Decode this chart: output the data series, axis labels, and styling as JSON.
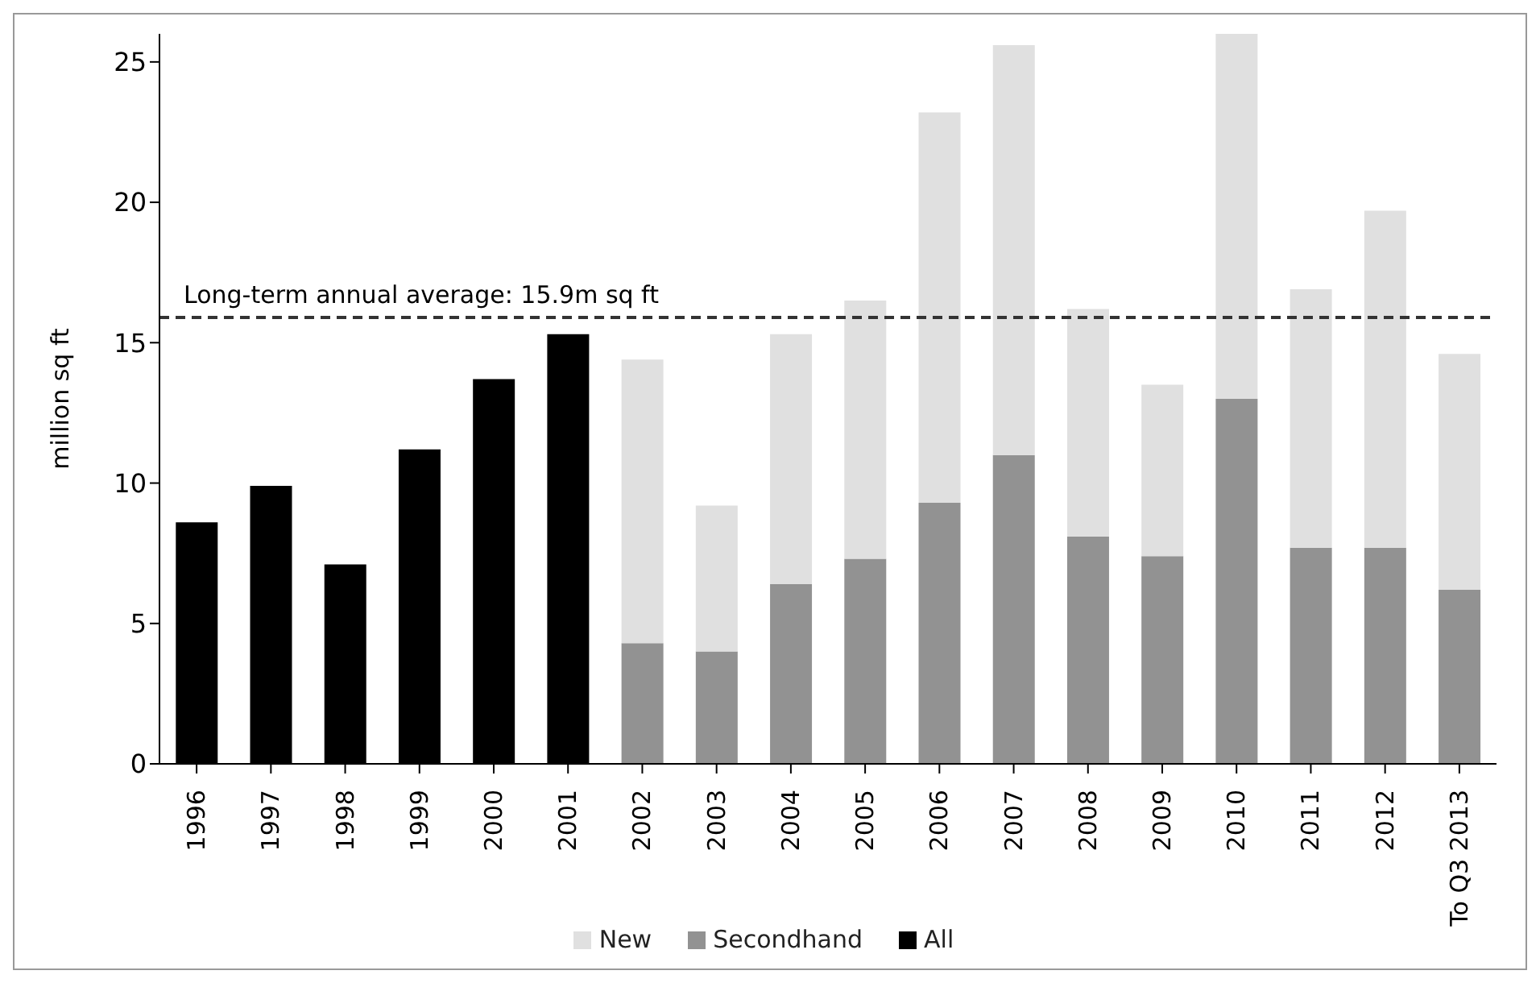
{
  "chart_data": {
    "type": "bar",
    "stacked": true,
    "ylabel": "million sq ft",
    "categories": [
      "1996",
      "1997",
      "1998",
      "1999",
      "2000",
      "2001",
      "2002",
      "2003",
      "2004",
      "2005",
      "2006",
      "2007",
      "2008",
      "2009",
      "2010",
      "2011",
      "2012",
      "To Q3 2013"
    ],
    "series": [
      {
        "name": "All",
        "color": "#000000",
        "values": [
          8.6,
          9.9,
          7.1,
          11.2,
          13.7,
          15.3,
          null,
          null,
          null,
          null,
          null,
          null,
          null,
          null,
          null,
          null,
          null,
          null
        ]
      },
      {
        "name": "Secondhand",
        "color": "#929292",
        "values": [
          null,
          null,
          null,
          null,
          null,
          null,
          4.3,
          4.0,
          6.4,
          7.3,
          9.3,
          11.0,
          8.1,
          7.4,
          13.0,
          7.7,
          7.7,
          6.2
        ]
      },
      {
        "name": "New",
        "color": "#e0e0e0",
        "values": [
          null,
          null,
          null,
          null,
          null,
          null,
          10.1,
          5.2,
          8.9,
          9.2,
          13.9,
          14.6,
          8.1,
          6.1,
          13.0,
          9.2,
          12.0,
          8.4
        ]
      }
    ],
    "ylim": [
      0,
      26
    ],
    "yticks": [
      0,
      5,
      10,
      15,
      20,
      25
    ],
    "ref_lines": [
      {
        "axis": "y",
        "value": 15.9,
        "label": "Long-term annual average: 15.9m sq ft",
        "color": "#333333",
        "line_style": "dashed"
      }
    ],
    "legend": "bottom",
    "grid": false
  }
}
